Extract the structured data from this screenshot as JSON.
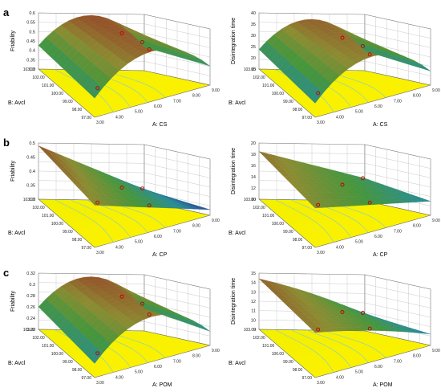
{
  "figure": {
    "panel_letters": [
      "a",
      "b",
      "c"
    ]
  },
  "chart_data": [
    {
      "type": "surface3d",
      "panel": "a",
      "xlabel": "A: CS",
      "ylabel": "B: Avcl",
      "zlabel": "Friability",
      "xticks": [
        "3.00",
        "4.00",
        "5.00",
        "6.00",
        "7.00",
        "8.00",
        "9.00"
      ],
      "yticks": [
        "97.00",
        "98.00",
        "99.00",
        "100.00",
        "101.00",
        "102.00",
        "103.00"
      ],
      "zticks": [
        "0.3",
        "0.35",
        "0.4",
        "0.45",
        "0.5",
        "0.55",
        "0.6"
      ],
      "zlim": [
        0.3,
        0.6
      ]
    },
    {
      "type": "surface3d",
      "panel": "a",
      "xlabel": "A: CS",
      "ylabel": "B: Avcl",
      "zlabel": "Disintegration time",
      "xticks": [
        "3.00",
        "4.00",
        "5.00",
        "6.00",
        "7.00",
        "8.00",
        "9.00"
      ],
      "yticks": [
        "97.00",
        "98.00",
        "99.00",
        "100.00",
        "101.00",
        "102.00",
        "103.00"
      ],
      "zticks": [
        "15",
        "20",
        "25",
        "30",
        "35",
        "40"
      ],
      "zlim": [
        15,
        40
      ]
    },
    {
      "type": "surface3d",
      "panel": "b",
      "xlabel": "A: CP",
      "ylabel": "B: Avcl",
      "zlabel": "Friability",
      "xticks": [
        "3.00",
        "4.00",
        "5.00",
        "6.00",
        "7.00",
        "8.00",
        "9.00"
      ],
      "yticks": [
        "97.00",
        "98.00",
        "99.00",
        "100.00",
        "101.00",
        "102.00",
        "103.00"
      ],
      "zticks": [
        "0.3",
        "0.35",
        "0.4",
        "0.45",
        "0.5"
      ],
      "zlim": [
        0.3,
        0.5
      ]
    },
    {
      "type": "surface3d",
      "panel": "b",
      "xlabel": "A: CP",
      "ylabel": "B: Avcl",
      "zlabel": "Disintegration time",
      "xticks": [
        "3.00",
        "4.00",
        "5.00",
        "6.00",
        "7.00",
        "8.00",
        "9.00"
      ],
      "yticks": [
        "97.00",
        "98.00",
        "99.00",
        "100.00",
        "101.00",
        "102.00",
        "103.00"
      ],
      "zticks": [
        "10",
        "12",
        "14",
        "16",
        "18",
        "20"
      ],
      "zlim": [
        10,
        20
      ]
    },
    {
      "type": "surface3d",
      "panel": "c",
      "xlabel": "A: POM",
      "ylabel": "B: Avcl",
      "zlabel": "Friability",
      "xticks": [
        "3.00",
        "4.00",
        "5.00",
        "6.00",
        "7.00",
        "8.00",
        "9.00"
      ],
      "yticks": [
        "97.00",
        "98.00",
        "99.00",
        "100.00",
        "101.00",
        "102.00",
        "103.00"
      ],
      "zticks": [
        "0.22",
        "0.24",
        "0.26",
        "0.28",
        "0.3",
        "0.32"
      ],
      "zlim": [
        0.22,
        0.32
      ]
    },
    {
      "type": "surface3d",
      "panel": "c",
      "xlabel": "A: POM",
      "ylabel": "B: Avcl",
      "zlabel": "Disintegration time",
      "xticks": [
        "3.00",
        "4.00",
        "5.00",
        "6.00",
        "7.00",
        "8.00",
        "9.00"
      ],
      "yticks": [
        "97.00",
        "98.00",
        "99.00",
        "100.00",
        "101.00",
        "102.00",
        "103.00"
      ],
      "zticks": [
        "9",
        "10",
        "11",
        "12",
        "13",
        "14",
        "15"
      ],
      "zlim": [
        9,
        15
      ]
    }
  ]
}
